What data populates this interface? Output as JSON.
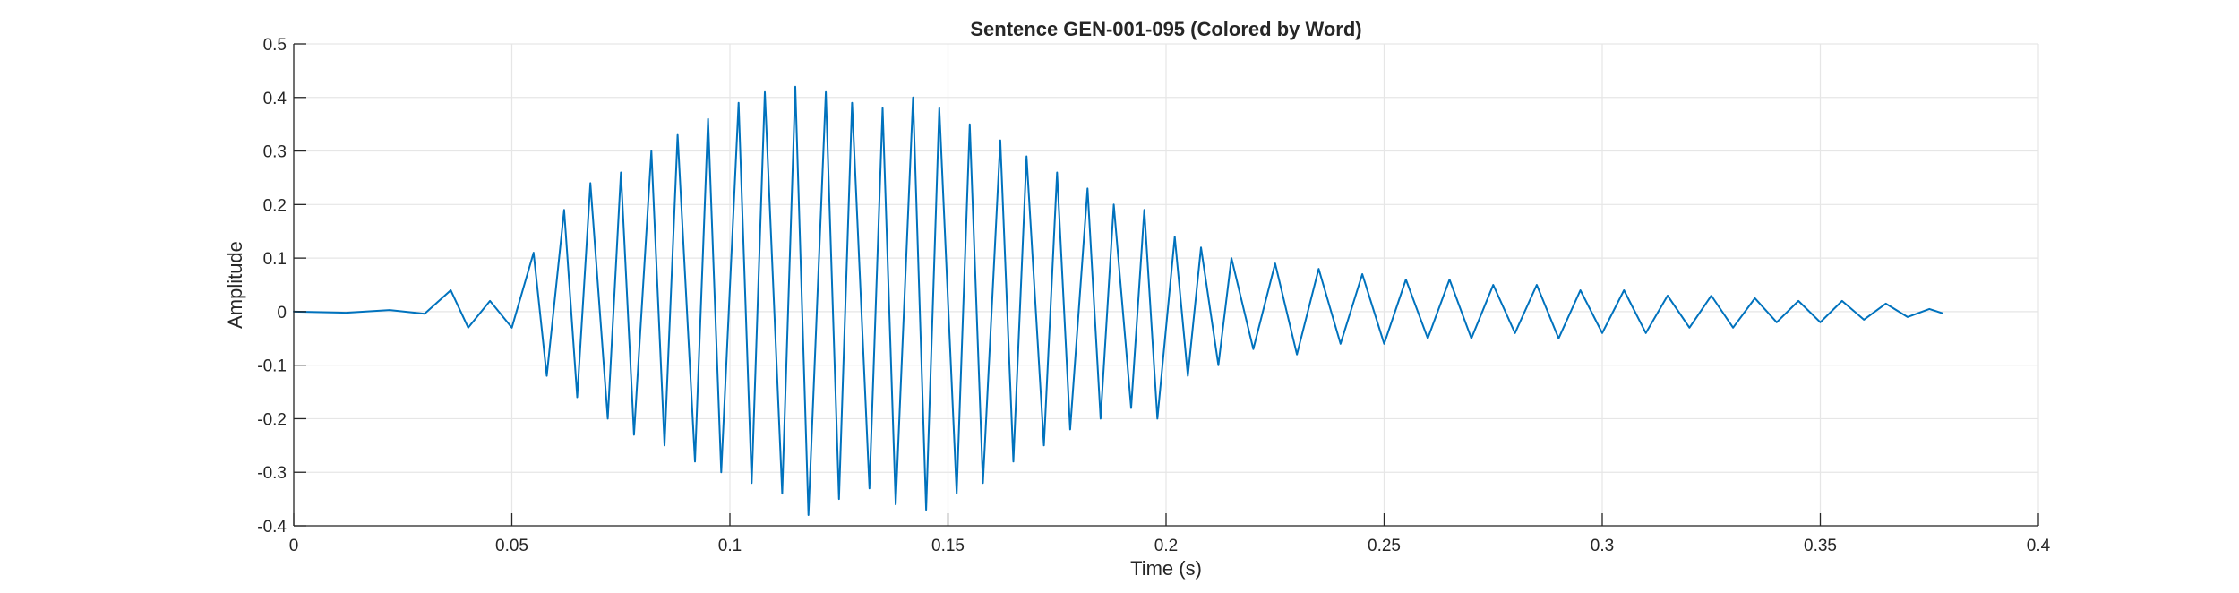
{
  "chart_data": {
    "type": "line",
    "title": "Sentence GEN-001-095 (Colored by Word)",
    "xlabel": "Time (s)",
    "ylabel": "Amplitude",
    "xlim": [
      0,
      0.4
    ],
    "ylim": [
      -0.4,
      0.5
    ],
    "x_ticks": [
      0,
      0.05,
      0.1,
      0.15,
      0.2,
      0.25,
      0.3,
      0.35,
      0.4
    ],
    "x_tick_labels": [
      "0",
      "0.05",
      "0.1",
      "0.15",
      "0.2",
      "0.25",
      "0.3",
      "0.35",
      "0.4"
    ],
    "y_ticks": [
      -0.4,
      -0.3,
      -0.2,
      -0.1,
      0,
      0.1,
      0.2,
      0.3,
      0.4,
      0.5
    ],
    "y_tick_labels": [
      "-0.4",
      "-0.3",
      "-0.2",
      "-0.1",
      "0",
      "0.1",
      "0.2",
      "0.3",
      "0.4",
      "0.5"
    ],
    "grid": true,
    "series": [
      {
        "color": "#0072bd",
        "x": [
          0.0,
          0.012,
          0.022,
          0.03,
          0.036,
          0.04,
          0.045,
          0.05,
          0.055,
          0.058,
          0.062,
          0.065,
          0.068,
          0.072,
          0.075,
          0.078,
          0.082,
          0.085,
          0.088,
          0.092,
          0.095,
          0.098,
          0.102,
          0.105,
          0.108,
          0.112,
          0.115,
          0.118,
          0.122,
          0.125,
          0.128,
          0.132,
          0.135,
          0.138,
          0.142,
          0.145,
          0.148,
          0.152,
          0.155,
          0.158,
          0.162,
          0.165,
          0.168,
          0.172,
          0.175,
          0.178,
          0.182,
          0.185,
          0.188,
          0.192,
          0.195,
          0.198,
          0.202,
          0.205,
          0.208,
          0.212,
          0.215,
          0.22,
          0.225,
          0.23,
          0.235,
          0.24,
          0.245,
          0.25,
          0.255,
          0.26,
          0.265,
          0.27,
          0.275,
          0.28,
          0.285,
          0.29,
          0.295,
          0.3,
          0.305,
          0.31,
          0.315,
          0.32,
          0.325,
          0.33,
          0.335,
          0.34,
          0.345,
          0.35,
          0.355,
          0.36,
          0.365,
          0.37,
          0.375,
          0.378
        ],
        "y": [
          0.0,
          -0.002,
          0.003,
          -0.004,
          0.04,
          -0.03,
          0.02,
          -0.03,
          0.11,
          -0.12,
          0.19,
          -0.16,
          0.24,
          -0.2,
          0.26,
          -0.23,
          0.3,
          -0.25,
          0.33,
          -0.28,
          0.36,
          -0.3,
          0.39,
          -0.32,
          0.41,
          -0.34,
          0.42,
          -0.38,
          0.41,
          -0.35,
          0.39,
          -0.33,
          0.38,
          -0.36,
          0.4,
          -0.37,
          0.38,
          -0.34,
          0.35,
          -0.32,
          0.32,
          -0.28,
          0.29,
          -0.25,
          0.26,
          -0.22,
          0.23,
          -0.2,
          0.2,
          -0.18,
          0.19,
          -0.2,
          0.14,
          -0.12,
          0.12,
          -0.1,
          0.1,
          -0.07,
          0.09,
          -0.08,
          0.08,
          -0.06,
          0.07,
          -0.06,
          0.06,
          -0.05,
          0.06,
          -0.05,
          0.05,
          -0.04,
          0.05,
          -0.05,
          0.04,
          -0.04,
          0.04,
          -0.04,
          0.03,
          -0.03,
          0.03,
          -0.03,
          0.025,
          -0.02,
          0.02,
          -0.02,
          0.02,
          -0.015,
          0.015,
          -0.01,
          0.005,
          -0.003
        ]
      }
    ]
  }
}
